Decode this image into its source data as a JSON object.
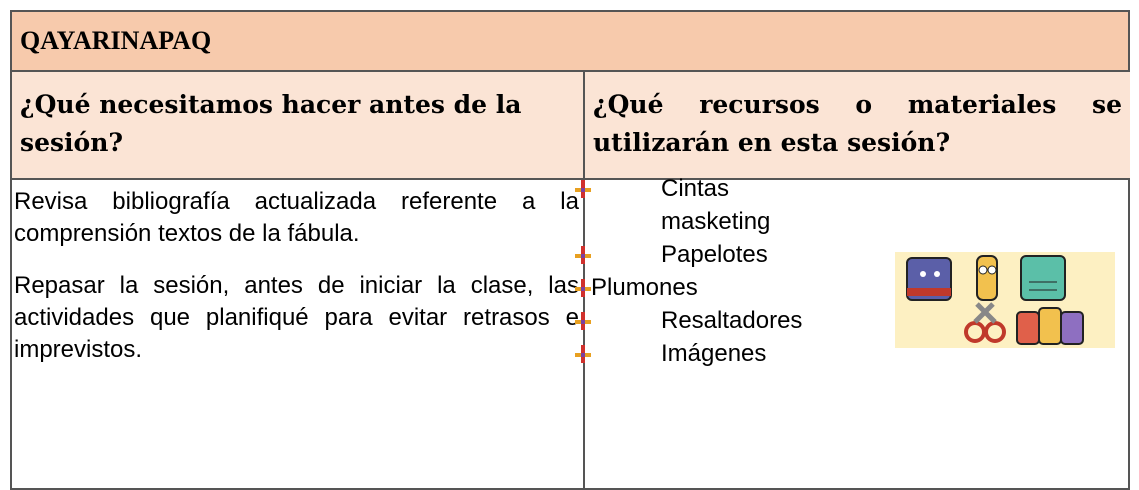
{
  "table": {
    "title": "QAYARINAPAQ",
    "headers": [
      "¿Qué necesitamos hacer antes de la sesión?",
      "¿Qué recursos o materiales se utilizarán en esta sesión?"
    ],
    "preparation": [
      "Revisa bibliografía actualizada referente a la comprensión textos de la fábula.",
      "Repasar la sesión, antes de iniciar la clase, las actividades que planifiqué para evitar retrasos e imprevistos."
    ],
    "materials": [
      "Cintas masketing",
      "Papelotes",
      "Plumones",
      "Resaltadores",
      "Imágenes"
    ]
  }
}
